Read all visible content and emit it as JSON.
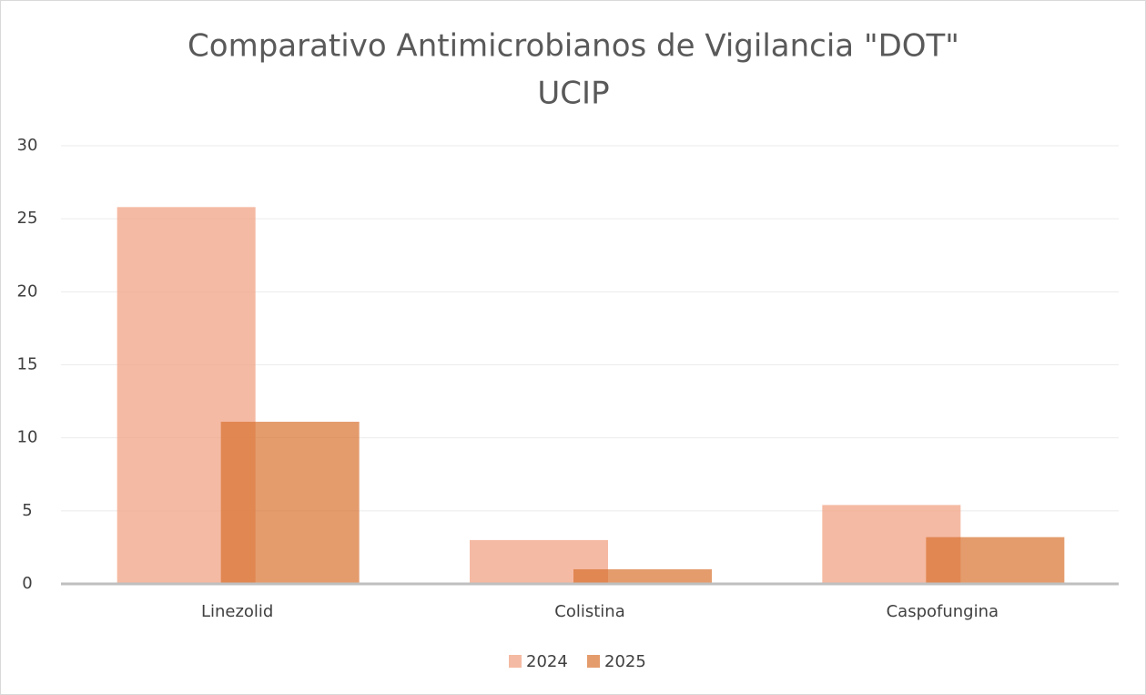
{
  "chart_data": {
    "type": "bar",
    "title": [
      "Comparativo Antimicrobianos de Vigilancia \"DOT\"",
      "UCIP"
    ],
    "categories": [
      "Linezolid",
      "Colistina",
      "Caspofungina"
    ],
    "series": [
      {
        "name": "2024",
        "color": "#f2a98c",
        "values": [
          25.8,
          3.0,
          5.4
        ]
      },
      {
        "name": "2025",
        "color": "#d9722f",
        "values": [
          11.1,
          1.0,
          3.2
        ]
      }
    ],
    "ylim": [
      0,
      30
    ],
    "yticks": [
      0,
      5,
      10,
      15,
      20,
      25,
      30
    ],
    "grid": true,
    "legend": "bottom"
  }
}
